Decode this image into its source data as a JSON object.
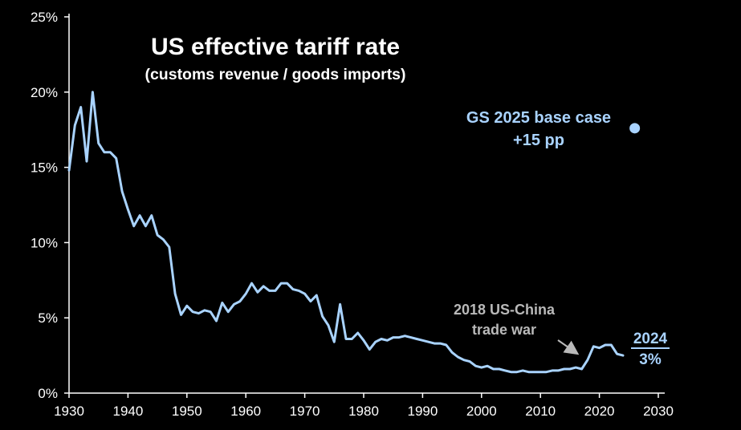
{
  "chart_data": {
    "type": "line",
    "title": "US effective tariff rate",
    "subtitle": "(customs revenue / goods imports)",
    "xlim": [
      1930,
      2030
    ],
    "ylim": [
      0,
      25
    ],
    "x_ticks": [
      1930,
      1940,
      1950,
      1960,
      1970,
      1980,
      1990,
      2000,
      2010,
      2020,
      2030
    ],
    "x_tick_labels": [
      "1930",
      "1940",
      "1950",
      "1960",
      "1970",
      "1980",
      "1990",
      "2000",
      "2010",
      "2020",
      "2030"
    ],
    "y_ticks": [
      0,
      5,
      10,
      15,
      20,
      25
    ],
    "y_tick_labels": [
      "0%",
      "5%",
      "10%",
      "15%",
      "20%",
      "25%"
    ],
    "grid": false,
    "colors": {
      "background": "#000000",
      "line": "#a9d3ff",
      "axis": "#ffffff",
      "text": "#ffffff",
      "annotation_grey": "#b9b9b9",
      "annotation_blue": "#a9d3ff"
    },
    "series": [
      {
        "x": [
          1930,
          1931,
          1932,
          1933,
          1934,
          1935,
          1936,
          1937,
          1938,
          1939,
          1940,
          1941,
          1942,
          1943,
          1944,
          1945,
          1946,
          1947,
          1948,
          1949,
          1950,
          1951,
          1952,
          1953,
          1954,
          1955,
          1956,
          1957,
          1958,
          1959,
          1960,
          1961,
          1962,
          1963,
          1964,
          1965,
          1966,
          1967,
          1968,
          1969,
          1970,
          1971,
          1972,
          1973,
          1974,
          1975,
          1976,
          1977,
          1978,
          1979,
          1980,
          1981,
          1982,
          1983,
          1984,
          1985,
          1986,
          1987,
          1988,
          1989,
          1990,
          1991,
          1992,
          1993,
          1994,
          1995,
          1996,
          1997,
          1998,
          1999,
          2000,
          2001,
          2002,
          2003,
          2004,
          2005,
          2006,
          2007,
          2008,
          2009,
          2010,
          2011,
          2012,
          2013,
          2014,
          2015,
          2016,
          2017,
          2018,
          2019,
          2020,
          2021,
          2022,
          2023,
          2024
        ],
        "y": [
          14.8,
          17.8,
          19.0,
          15.4,
          20.0,
          16.6,
          16.0,
          16.0,
          15.6,
          13.4,
          12.2,
          11.1,
          11.8,
          11.1,
          11.8,
          10.5,
          10.2,
          9.7,
          6.6,
          5.2,
          5.8,
          5.4,
          5.3,
          5.5,
          5.4,
          4.8,
          6.0,
          5.4,
          5.9,
          6.1,
          6.6,
          7.3,
          6.7,
          7.1,
          6.8,
          6.8,
          7.3,
          7.3,
          6.9,
          6.8,
          6.6,
          6.1,
          6.5,
          5.1,
          4.5,
          3.4,
          5.9,
          3.6,
          3.6,
          4.0,
          3.5,
          2.9,
          3.4,
          3.6,
          3.5,
          3.7,
          3.7,
          3.8,
          3.7,
          3.6,
          3.5,
          3.4,
          3.3,
          3.3,
          3.2,
          2.7,
          2.4,
          2.2,
          2.1,
          1.8,
          1.7,
          1.8,
          1.6,
          1.6,
          1.5,
          1.4,
          1.4,
          1.5,
          1.4,
          1.4,
          1.4,
          1.4,
          1.5,
          1.5,
          1.6,
          1.6,
          1.7,
          1.6,
          2.2,
          3.1,
          3.0,
          3.2,
          3.2,
          2.6,
          2.5
        ]
      }
    ],
    "point": {
      "x": 2026,
      "y": 17.6,
      "label_line1": "GS 2025 base case",
      "label_line2": "+15 pp"
    },
    "annotations": {
      "trade_war_line1": "2018 US-China",
      "trade_war_line2": "trade war",
      "latest_year": "2024",
      "latest_value": "3%"
    }
  }
}
